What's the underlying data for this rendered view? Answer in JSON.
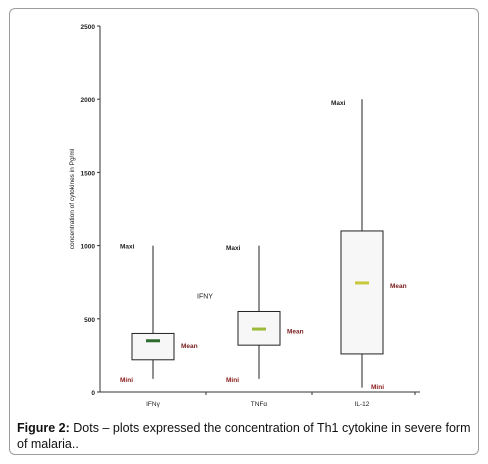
{
  "caption": {
    "label": "Figure 2:",
    "text": "Dots – plots expressed the concentration of Th1 cytokine in severe form of malaria.."
  },
  "chart_data": {
    "type": "boxplot",
    "ylabel": "concentration of cytokines in Pg/ml",
    "ylim": [
      0,
      2500
    ],
    "yticks": [
      0,
      500,
      1000,
      1500,
      2000,
      2500
    ],
    "grid": false,
    "categories": [
      "IFNγ",
      "TNFα",
      "IL-12"
    ],
    "boxes": [
      {
        "category": "IFNγ",
        "min": 90,
        "q1": 220,
        "median": 350,
        "q3": 400,
        "max": 1000,
        "mean_color": "#2e6b2e"
      },
      {
        "category": "TNFα",
        "min": 90,
        "q1": 320,
        "median": 430,
        "q3": 550,
        "max": 1000,
        "mean_color": "#9dbb3a"
      },
      {
        "category": "IL-12",
        "min": 30,
        "q1": 260,
        "median": 745,
        "q3": 1100,
        "max": 2000,
        "mean_color": "#c8c83a"
      }
    ],
    "annotations": [
      {
        "text": "Maxi",
        "category": 0,
        "value": 1000,
        "side": "left"
      },
      {
        "text": "Mean",
        "category": 0,
        "value": 320,
        "side": "right"
      },
      {
        "text": "Mini",
        "category": 0,
        "value": 90,
        "side": "left"
      },
      {
        "text": "IFNY",
        "category": 0,
        "value": 660,
        "side": "right-far"
      },
      {
        "text": "Maxi",
        "category": 1,
        "value": 990,
        "side": "left"
      },
      {
        "text": "Mean",
        "category": 1,
        "value": 420,
        "side": "right"
      },
      {
        "text": "Mini",
        "category": 1,
        "value": 90,
        "side": "left"
      },
      {
        "text": "Maxi",
        "category": 2,
        "value": 1980,
        "side": "left"
      },
      {
        "text": "Mean",
        "category": 2,
        "value": 730,
        "side": "right"
      },
      {
        "text": "Mini",
        "category": 2,
        "value": 40,
        "side": "right"
      }
    ],
    "colors": {
      "box_fill": "#f7f7f7",
      "box_stroke": "#222222",
      "mini_text": "#8a1a1a"
    }
  }
}
